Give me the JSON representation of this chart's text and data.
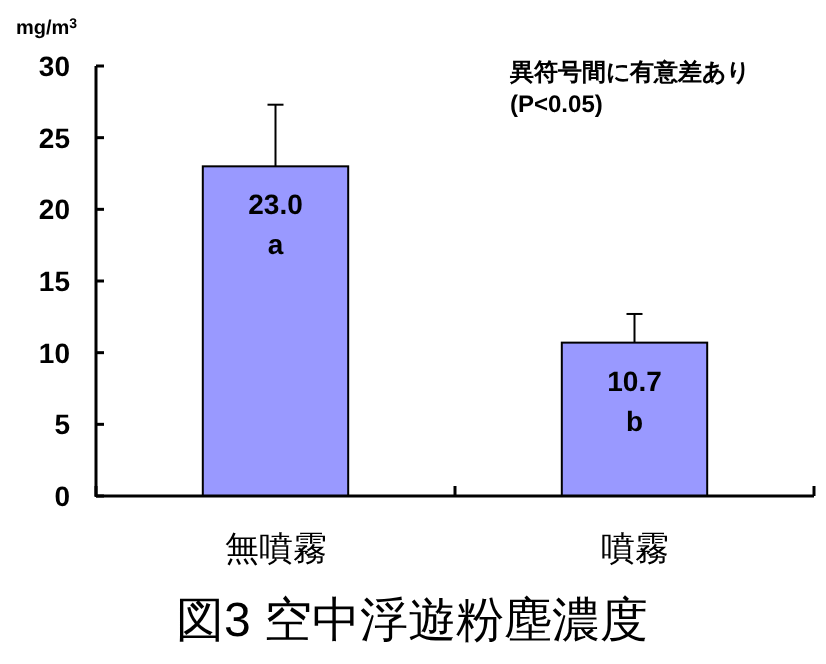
{
  "chart_data": {
    "type": "bar",
    "title": "図3 空中浮遊粉塵濃度",
    "ylabel": "mg/m$^{3}$",
    "categories": [
      "無噴霧",
      "噴霧"
    ],
    "values": [
      23.0,
      10.7
    ],
    "color": "#9999ff",
    "errors": [
      [
        23.0,
        27.3
      ],
      [
        10.7,
        12.7
      ]
    ],
    "value_labels": [
      "23.0",
      "10.7"
    ],
    "ylim": [
      0,
      30
    ],
    "yticks": [
      0,
      5,
      10,
      15,
      20,
      25,
      30
    ],
    "annotations": [
      "異符号間に有意差あり",
      "(P<0.05)",
      "a",
      "b"
    ]
  }
}
